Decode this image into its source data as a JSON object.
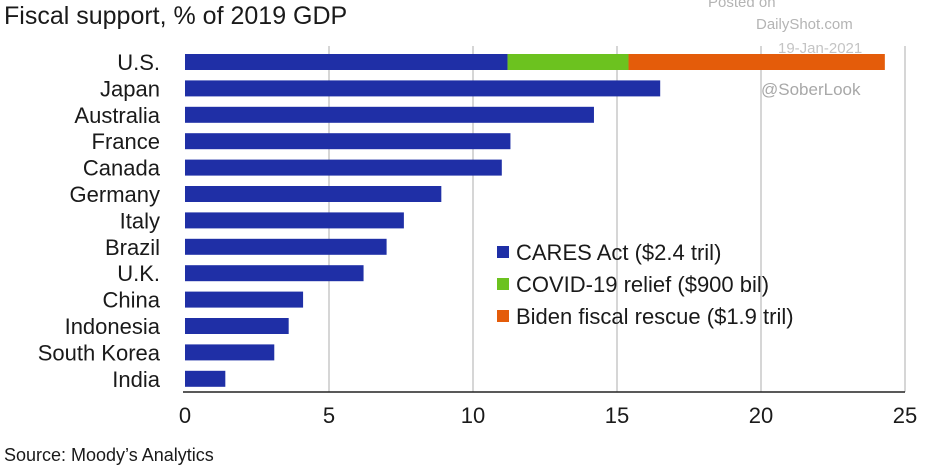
{
  "title": "Fiscal support, % of 2019 GDP",
  "source": "Source: Moody’s Analytics",
  "watermark": {
    "posted": "Posted on",
    "site": "DailyShot.com",
    "date": "19-Jan-2021",
    "handle": "@SoberLook"
  },
  "colors": {
    "cares": "#1f2fa6",
    "covid": "#6cc21f",
    "biden": "#e45c0a",
    "grid": "#c8c8c8",
    "axis": "#222222"
  },
  "chart_data": {
    "type": "bar",
    "orientation": "horizontal",
    "stacked": true,
    "title": "Fiscal support, % of 2019 GDP",
    "categories": [
      "U.S.",
      "Japan",
      "Australia",
      "France",
      "Canada",
      "Germany",
      "Italy",
      "Brazil",
      "U.K.",
      "China",
      "Indonesia",
      "South Korea",
      "India"
    ],
    "series": [
      {
        "name": "CARES Act ($2.4 tril)",
        "color": "#1f2fa6",
        "values": [
          11.2,
          16.5,
          14.2,
          11.3,
          11.0,
          8.9,
          7.6,
          7.0,
          6.2,
          4.1,
          3.6,
          3.1,
          1.4
        ]
      },
      {
        "name": "COVID-19 relief ($900 bil)",
        "color": "#6cc21f",
        "values": [
          4.2,
          0,
          0,
          0,
          0,
          0,
          0,
          0,
          0,
          0,
          0,
          0,
          0
        ]
      },
      {
        "name": "Biden fiscal rescue ($1.9 tril)",
        "color": "#e45c0a",
        "values": [
          8.9,
          0,
          0,
          0,
          0,
          0,
          0,
          0,
          0,
          0,
          0,
          0,
          0
        ]
      }
    ],
    "xlim": [
      0,
      25
    ],
    "xticks": [
      0,
      5,
      10,
      15,
      20,
      25
    ],
    "grid": "vertical",
    "legend_position": "lower-right"
  }
}
